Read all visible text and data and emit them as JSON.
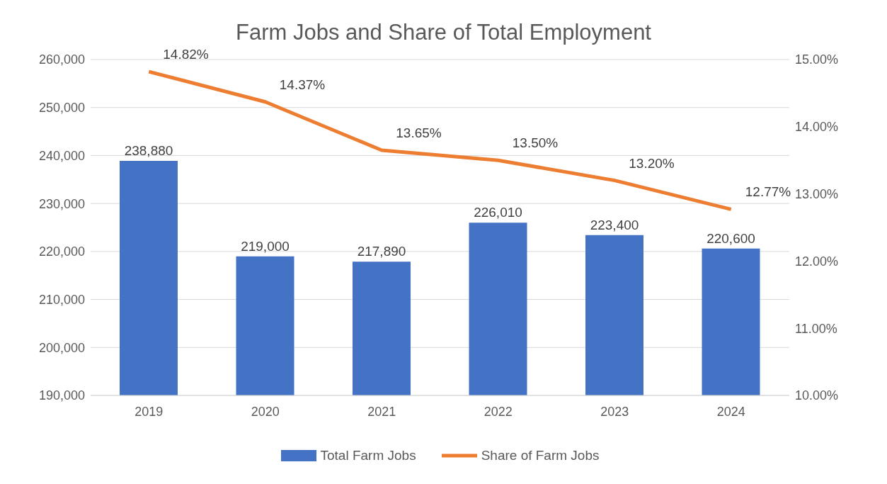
{
  "chart_data": {
    "type": "bar",
    "title": "Farm Jobs and Share of Total Employment",
    "categories": [
      "2019",
      "2020",
      "2021",
      "2022",
      "2023",
      "2024"
    ],
    "series": [
      {
        "name": "Total Farm Jobs",
        "color": "#4472c4",
        "values": [
          238880,
          219000,
          217890,
          226010,
          223400,
          220600
        ],
        "value_labels": [
          "238,880",
          "219,000",
          "217,890",
          "226,010",
          "223,400",
          "220,600"
        ]
      },
      {
        "name": "Share of Farm Jobs",
        "type": "line",
        "axis": "y2",
        "color": "#ed7d31",
        "values": [
          14.82,
          14.37,
          13.65,
          13.5,
          13.2,
          12.77
        ],
        "value_labels": [
          "14.82%",
          "14.37%",
          "13.65%",
          "13.50%",
          "13.20%",
          "12.77%"
        ]
      }
    ],
    "ylim": [
      190000,
      260000
    ],
    "yticks": [
      {
        "value": 190000,
        "label": "190,000"
      },
      {
        "value": 200000,
        "label": "200,000"
      },
      {
        "value": 210000,
        "label": "210,000"
      },
      {
        "value": 220000,
        "label": "220,000"
      },
      {
        "value": 230000,
        "label": "230,000"
      },
      {
        "value": 240000,
        "label": "240,000"
      },
      {
        "value": 250000,
        "label": "250,000"
      },
      {
        "value": 260000,
        "label": "260,000"
      }
    ],
    "y2lim": [
      10,
      15
    ],
    "y2ticks": [
      {
        "value": 10,
        "label": "10.00%"
      },
      {
        "value": 11,
        "label": "11.00%"
      },
      {
        "value": 12,
        "label": "12.00%"
      },
      {
        "value": 13,
        "label": "13.00%"
      },
      {
        "value": 14,
        "label": "14.00%"
      },
      {
        "value": 15,
        "label": "15.00%"
      }
    ],
    "grid": "y",
    "legend": "bottom",
    "marker": "none",
    "line_style": "solid"
  }
}
